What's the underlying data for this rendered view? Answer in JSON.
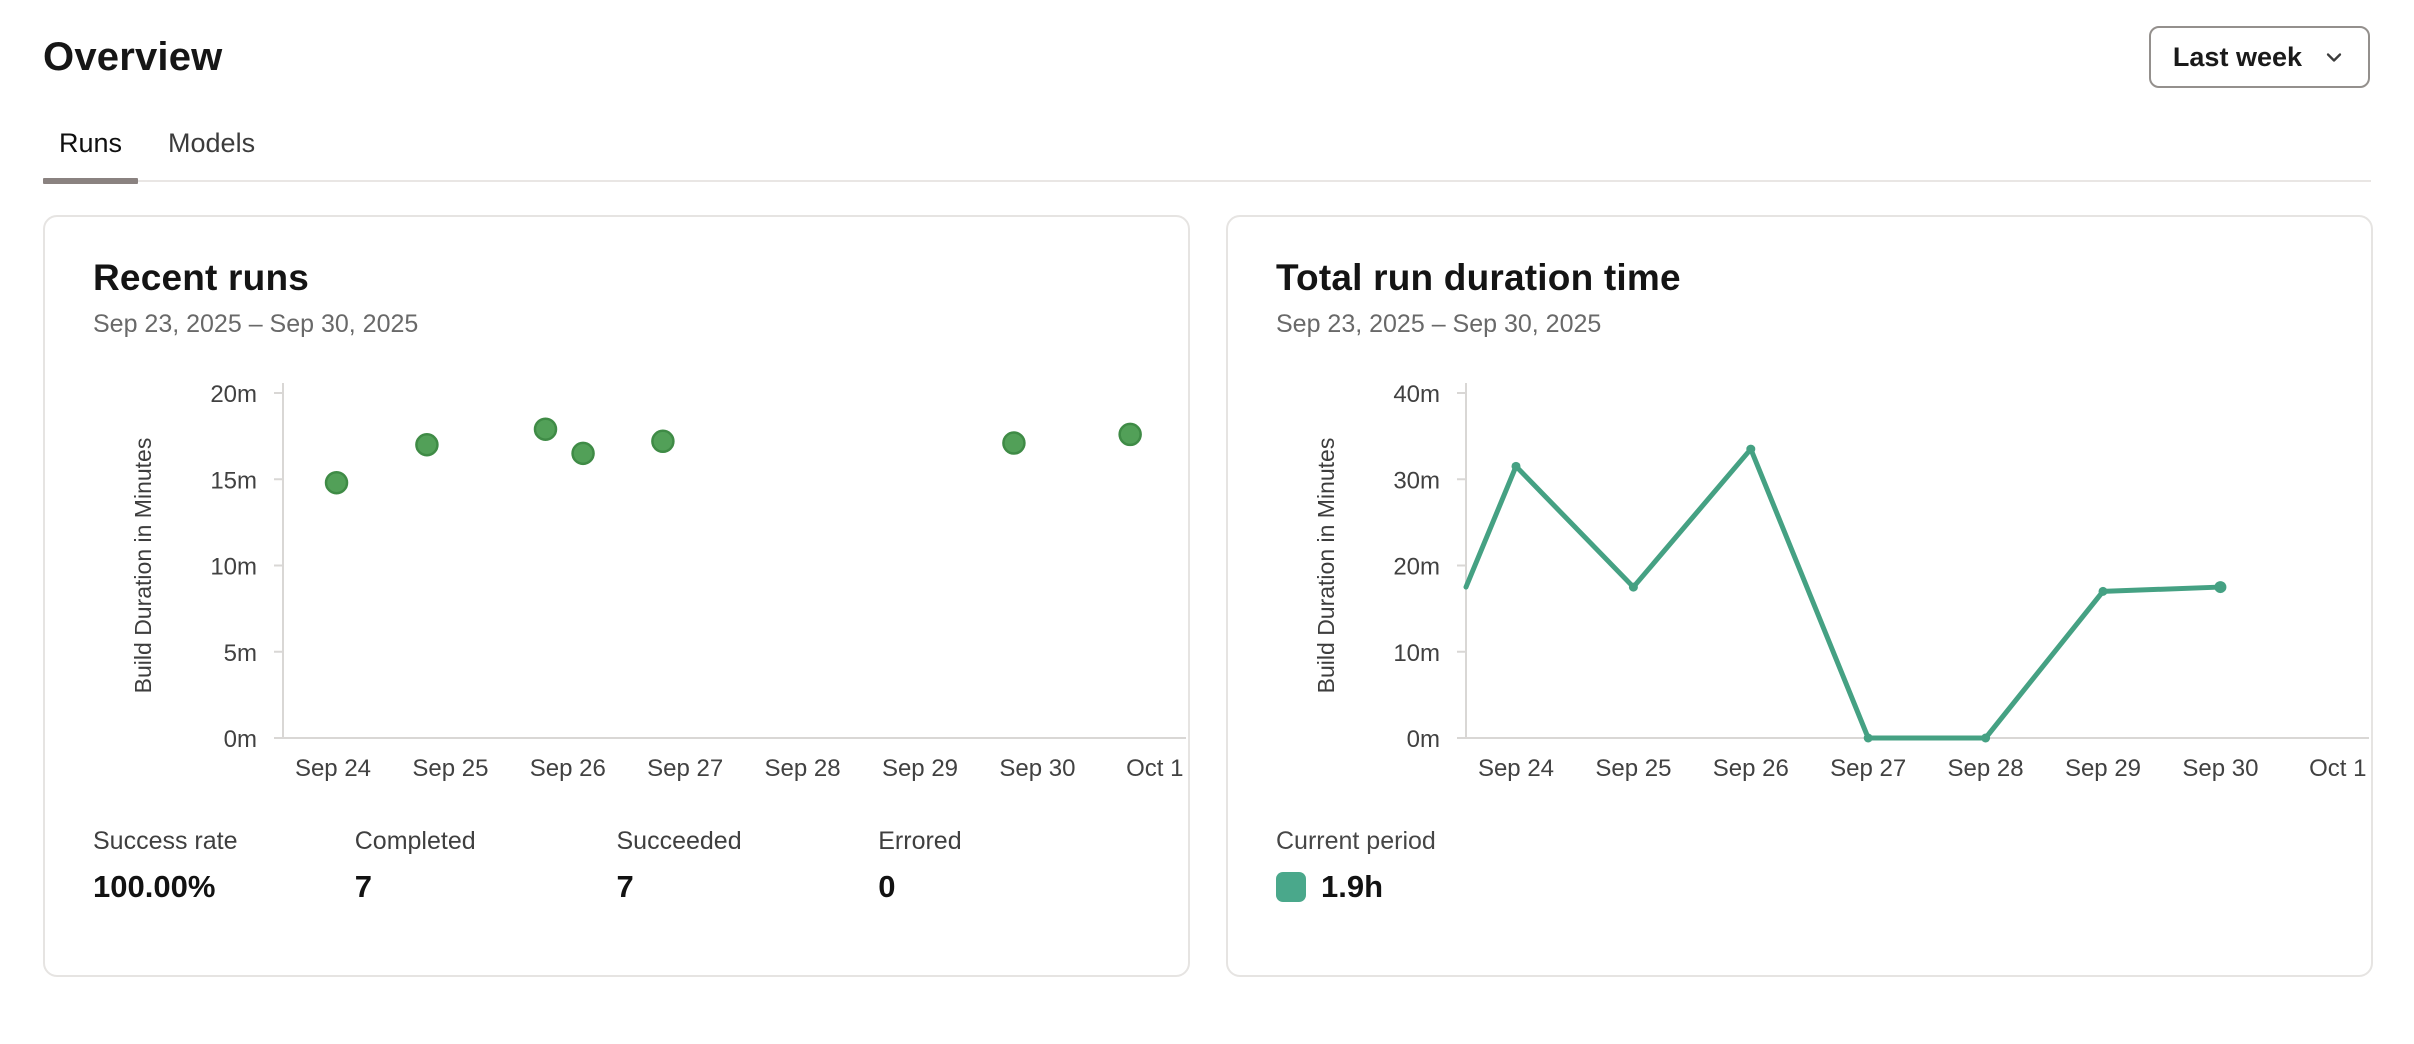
{
  "page": {
    "title": "Overview"
  },
  "period_selector": {
    "label": "Last week",
    "icon": "chevron-down-icon"
  },
  "tabs": [
    {
      "label": "Runs",
      "active": true
    },
    {
      "label": "Models",
      "active": false
    }
  ],
  "recent_runs": {
    "title": "Recent runs",
    "date_range": "Sep 23, 2025 – Sep 30, 2025",
    "stats": [
      {
        "label": "Success rate",
        "value": "100.00%"
      },
      {
        "label": "Completed",
        "value": "7"
      },
      {
        "label": "Succeeded",
        "value": "7"
      },
      {
        "label": "Errored",
        "value": "0"
      }
    ]
  },
  "duration": {
    "title": "Total run duration time",
    "date_range": "Sep 23, 2025 – Sep 30, 2025",
    "legend": {
      "label": "Current period",
      "value": "1.9h",
      "color": "#4aa88b"
    }
  },
  "chart_data": [
    {
      "type": "scatter",
      "title": "Recent runs",
      "xlabel": "",
      "ylabel": "Build Duration in Minutes",
      "unit": "minutes",
      "ylim": [
        0,
        20
      ],
      "ytick_labels": [
        "0m",
        "5m",
        "10m",
        "15m",
        "20m"
      ],
      "categories": [
        "Sep 24",
        "Sep 25",
        "Sep 26",
        "Sep 27",
        "Sep 28",
        "Sep 29",
        "Sep 30",
        "Oct 1"
      ],
      "grid": false,
      "legend_position": "none",
      "point_color": "#52a058",
      "point_stroke": "#3f8b46",
      "points": [
        {
          "x": "Sep 24",
          "day_offset": 0.03,
          "y": 14.8
        },
        {
          "x": "Sep 25",
          "day_offset": -0.2,
          "y": 17.0
        },
        {
          "x": "Sep 26",
          "day_offset": -0.19,
          "y": 17.9
        },
        {
          "x": "Sep 26",
          "day_offset": 0.13,
          "y": 16.5
        },
        {
          "x": "Sep 27",
          "day_offset": -0.19,
          "y": 17.2
        },
        {
          "x": "Sep 30",
          "day_offset": -0.2,
          "y": 17.1
        },
        {
          "x": "Oct 1",
          "day_offset": -0.21,
          "y": 17.6
        }
      ]
    },
    {
      "type": "line",
      "title": "Total run duration time",
      "xlabel": "",
      "ylabel": "Build Duration in Minutes",
      "unit": "minutes",
      "ylim": [
        0,
        40
      ],
      "ytick_labels": [
        "0m",
        "10m",
        "20m",
        "30m",
        "40m"
      ],
      "categories": [
        "Sep 24",
        "Sep 25",
        "Sep 26",
        "Sep 27",
        "Sep 28",
        "Sep 29",
        "Sep 30",
        "Oct 1"
      ],
      "grid": false,
      "legend_position": "bottom-left",
      "line_color": "#45a183",
      "series": [
        {
          "name": "Current period",
          "total": "1.9h",
          "edge_start": {
            "day_offset": -0.45,
            "y": 17.5
          },
          "x": [
            "Sep 24",
            "Sep 25",
            "Sep 26",
            "Sep 27",
            "Sep 28",
            "Sep 29",
            "Sep 30"
          ],
          "values": [
            31.5,
            17.5,
            33.5,
            0,
            0,
            17,
            17.5
          ]
        }
      ]
    }
  ]
}
